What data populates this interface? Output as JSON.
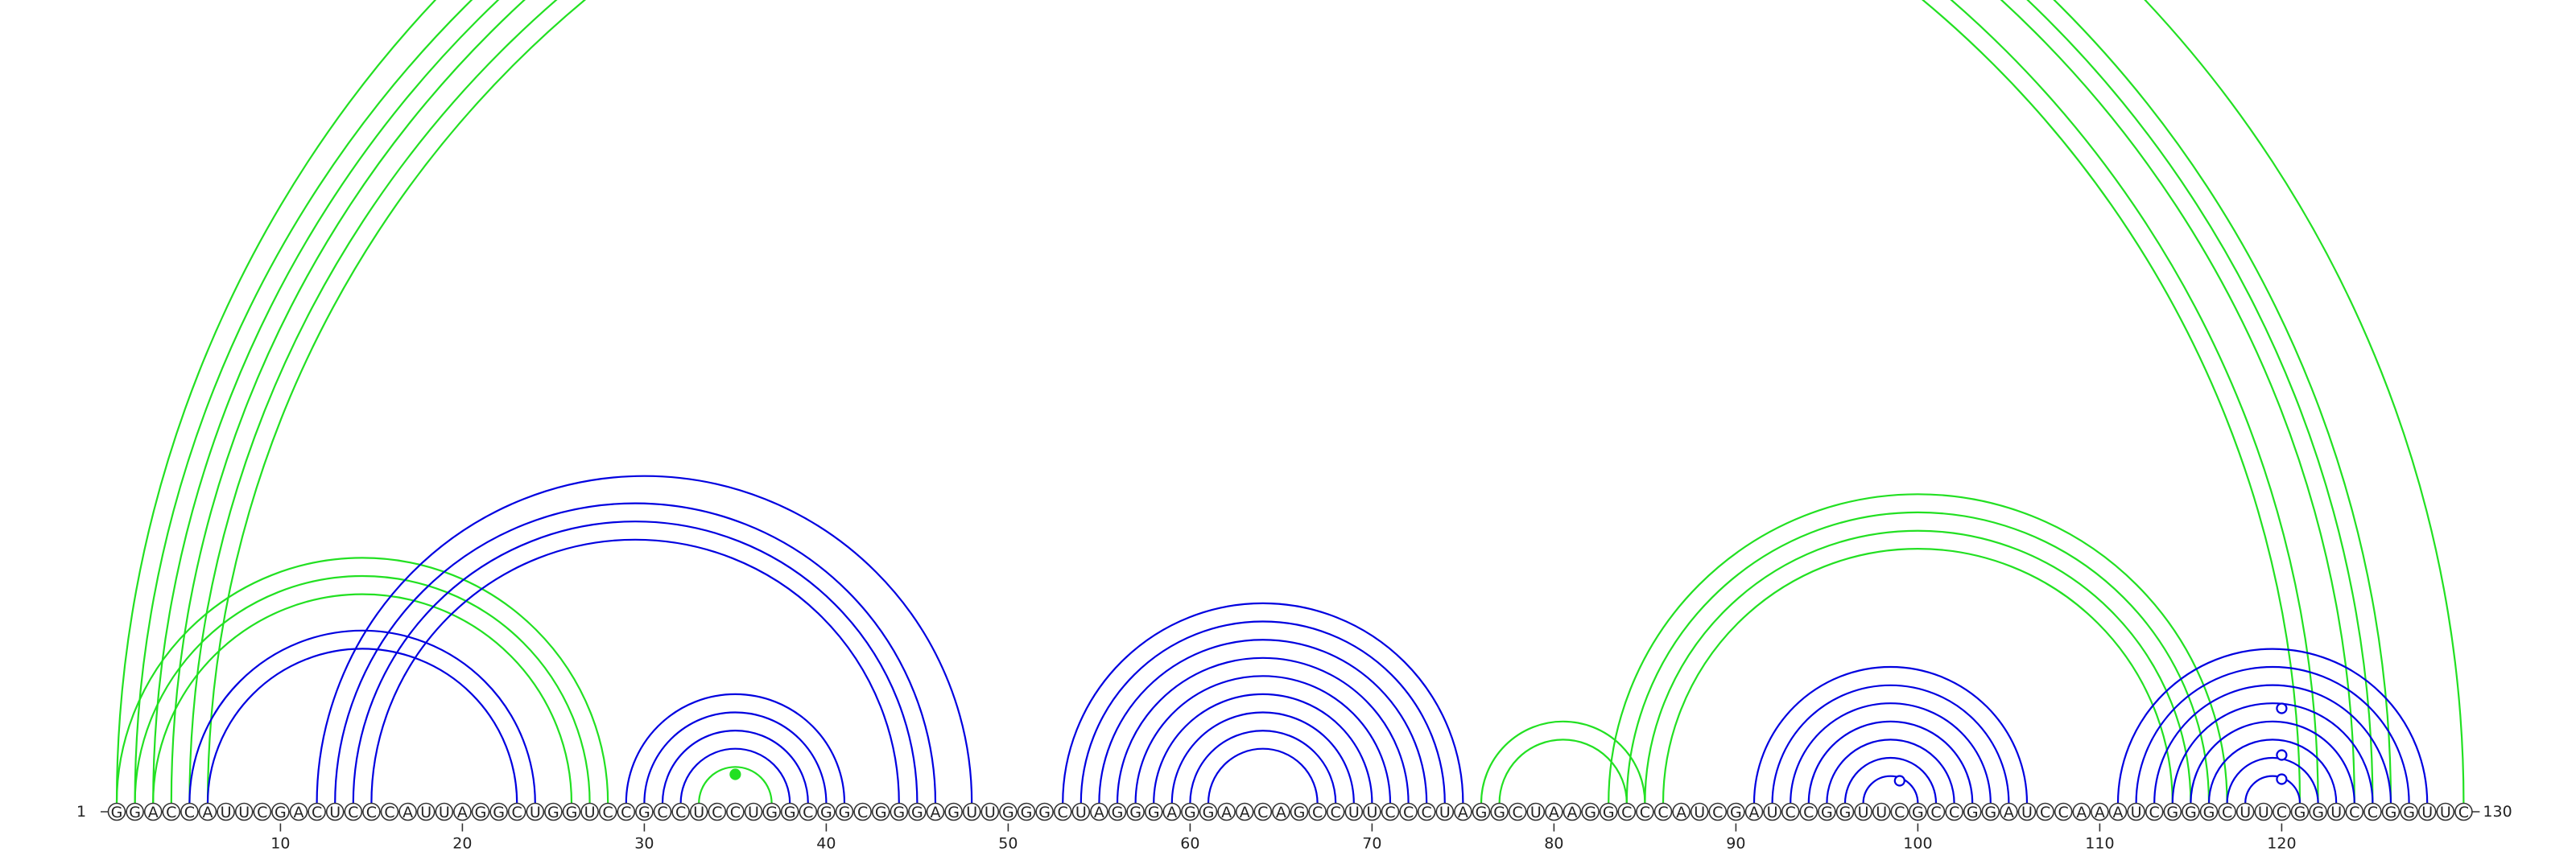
{
  "sequence": "GGACCAUUCGACUCCCAUUAGGCUGGUCCGCCUCCUGGCGGCGGGAGUUGGGCUAGGGAGGAACAGCCUUCCCUAGGCUAAGGCCCAUCGAUCCGGUUCGCCGGAUCCAAAUCGGGCUUCGGUCCGGUUC",
  "start_label": "1",
  "end_label": "130",
  "ticks": [
    10,
    20,
    30,
    40,
    50,
    60,
    70,
    80,
    90,
    100,
    110,
    120
  ],
  "colors": {
    "blue": "#0000e0",
    "green": "#22e022"
  },
  "arcs": [
    {
      "i": 1,
      "j": 130,
      "color": "green"
    },
    {
      "i": 2,
      "j": 126,
      "color": "green"
    },
    {
      "i": 3,
      "j": 125,
      "color": "green"
    },
    {
      "i": 4,
      "j": 124,
      "color": "green"
    },
    {
      "i": 5,
      "j": 122,
      "color": "green"
    },
    {
      "i": 6,
      "j": 121,
      "color": "green"
    },
    {
      "i": 1,
      "j": 28,
      "color": "green"
    },
    {
      "i": 2,
      "j": 27,
      "color": "green"
    },
    {
      "i": 3,
      "j": 26,
      "color": "green"
    },
    {
      "i": 5,
      "j": 24,
      "color": "blue"
    },
    {
      "i": 6,
      "j": 23,
      "color": "blue"
    },
    {
      "i": 12,
      "j": 48,
      "color": "blue"
    },
    {
      "i": 13,
      "j": 46,
      "color": "blue"
    },
    {
      "i": 14,
      "j": 45,
      "color": "blue"
    },
    {
      "i": 15,
      "j": 44,
      "color": "blue"
    },
    {
      "i": 29,
      "j": 41,
      "color": "blue"
    },
    {
      "i": 30,
      "j": 40,
      "color": "blue"
    },
    {
      "i": 31,
      "j": 39,
      "color": "blue"
    },
    {
      "i": 32,
      "j": 38,
      "color": "blue"
    },
    {
      "i": 33,
      "j": 37,
      "color": "green"
    },
    {
      "i": 53,
      "j": 75,
      "color": "blue"
    },
    {
      "i": 54,
      "j": 74,
      "color": "blue"
    },
    {
      "i": 55,
      "j": 73,
      "color": "blue"
    },
    {
      "i": 56,
      "j": 72,
      "color": "blue"
    },
    {
      "i": 57,
      "j": 71,
      "color": "blue"
    },
    {
      "i": 58,
      "j": 70,
      "color": "blue"
    },
    {
      "i": 59,
      "j": 69,
      "color": "blue"
    },
    {
      "i": 60,
      "j": 68,
      "color": "blue"
    },
    {
      "i": 61,
      "j": 67,
      "color": "blue"
    },
    {
      "i": 76,
      "j": 85,
      "color": "green"
    },
    {
      "i": 77,
      "j": 84,
      "color": "green"
    },
    {
      "i": 83,
      "j": 117,
      "color": "green"
    },
    {
      "i": 84,
      "j": 116,
      "color": "green"
    },
    {
      "i": 85,
      "j": 115,
      "color": "green"
    },
    {
      "i": 86,
      "j": 114,
      "color": "green"
    },
    {
      "i": 91,
      "j": 106,
      "color": "blue"
    },
    {
      "i": 92,
      "j": 105,
      "color": "blue"
    },
    {
      "i": 93,
      "j": 104,
      "color": "blue"
    },
    {
      "i": 94,
      "j": 103,
      "color": "blue"
    },
    {
      "i": 95,
      "j": 102,
      "color": "blue"
    },
    {
      "i": 96,
      "j": 101,
      "color": "blue"
    },
    {
      "i": 97,
      "j": 100,
      "color": "blue"
    },
    {
      "i": 111,
      "j": 128,
      "color": "blue"
    },
    {
      "i": 112,
      "j": 127,
      "color": "blue"
    },
    {
      "i": 113,
      "j": 126,
      "color": "blue"
    },
    {
      "i": 114,
      "j": 125,
      "color": "blue"
    },
    {
      "i": 115,
      "j": 124,
      "color": "blue"
    },
    {
      "i": 116,
      "j": 123,
      "color": "blue"
    },
    {
      "i": 117,
      "j": 122,
      "color": "blue"
    },
    {
      "i": 118,
      "j": 121,
      "color": "blue"
    }
  ],
  "markers": [
    {
      "pos": 35,
      "r": 36,
      "color": "green",
      "filled": true
    },
    {
      "pos": 99,
      "r": 28,
      "color": "blue",
      "filled": false
    },
    {
      "pos": 120,
      "r": 30,
      "color": "blue",
      "filled": false
    },
    {
      "pos": 120,
      "r": 60,
      "color": "blue",
      "filled": false
    },
    {
      "pos": 120,
      "r": 118,
      "color": "blue",
      "filled": false
    }
  ]
}
